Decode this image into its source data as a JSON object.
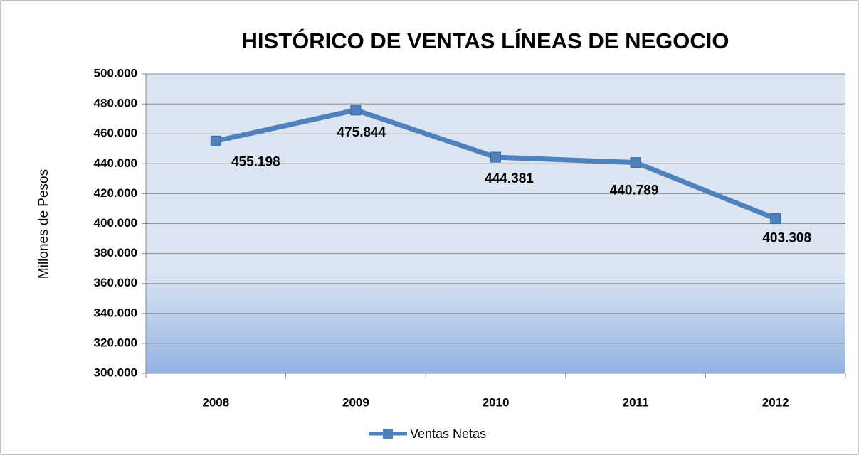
{
  "chart_data": {
    "type": "line",
    "title": "HISTÓRICO DE VENTAS LÍNEAS DE NEGOCIO",
    "y_label": "Millones de Pesos",
    "categories": [
      "2008",
      "2009",
      "2010",
      "2011",
      "2012"
    ],
    "series": [
      {
        "name": "Ventas Netas",
        "color": "#4f81bd",
        "values": [
          455198,
          475844,
          444381,
          440789,
          403308
        ],
        "value_labels": [
          "455.198",
          "475.844",
          "444.381",
          "440.789",
          "403.308"
        ]
      }
    ],
    "ylim": [
      300000,
      500000
    ],
    "yticks": [
      {
        "value": 300000,
        "label": "300.000"
      },
      {
        "value": 320000,
        "label": "320.000"
      },
      {
        "value": 340000,
        "label": "340.000"
      },
      {
        "value": 360000,
        "label": "360.000"
      },
      {
        "value": 380000,
        "label": "380.000"
      },
      {
        "value": 400000,
        "label": "400.000"
      },
      {
        "value": 420000,
        "label": "420.000"
      },
      {
        "value": 440000,
        "label": "440.000"
      },
      {
        "value": 460000,
        "label": "460.000"
      },
      {
        "value": 480000,
        "label": "480.000"
      },
      {
        "value": 500000,
        "label": "500.000"
      }
    ],
    "grid": true,
    "legend": "bottom"
  }
}
